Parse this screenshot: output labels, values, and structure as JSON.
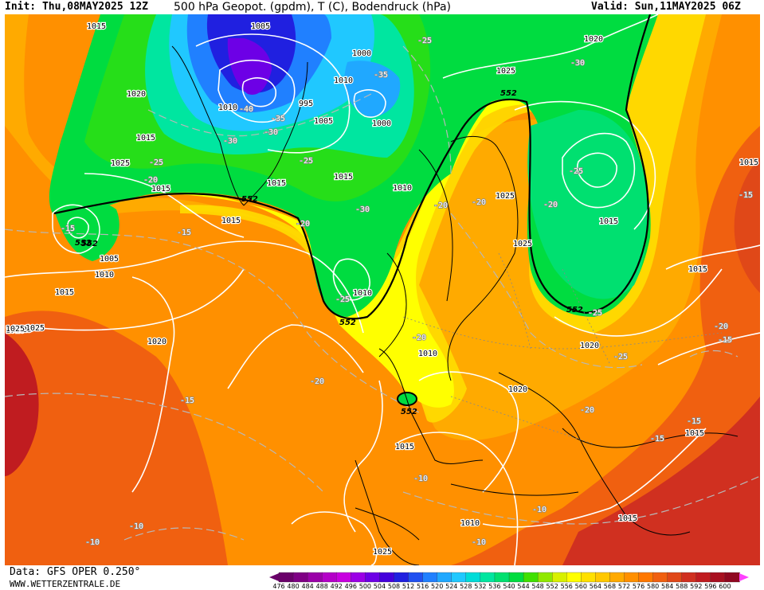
{
  "header": {
    "init": "Init: Thu,08MAY2025 12Z",
    "title": "500 hPa Geopot. (gpdm), T (C), Bodendruck (hPa)",
    "valid": "Valid: Sun,11MAY2025 06Z"
  },
  "footer": {
    "data_source": "Data: GFS OPER 0.250°",
    "site": "WWW.WETTERZENTRALE.DE"
  },
  "legend": {
    "values": [
      "476",
      "480",
      "484",
      "488",
      "492",
      "496",
      "500",
      "504",
      "508",
      "512",
      "516",
      "520",
      "524",
      "528",
      "532",
      "536",
      "540",
      "544",
      "548",
      "552",
      "556",
      "560",
      "564",
      "568",
      "572",
      "576",
      "580",
      "584",
      "588",
      "592",
      "596",
      "600"
    ],
    "colors": [
      "#6a006a",
      "#7f0085",
      "#9a00a8",
      "#b400c8",
      "#c800e0",
      "#9b00e6",
      "#6d00e6",
      "#4400dc",
      "#2020e0",
      "#2050f0",
      "#2080ff",
      "#20a8ff",
      "#20c8ff",
      "#00dcd8",
      "#00e6a0",
      "#00e070",
      "#00dc40",
      "#40e000",
      "#90e800",
      "#d8f000",
      "#ffff00",
      "#ffe000",
      "#ffc800",
      "#ffaa00",
      "#ff9000",
      "#ff7800",
      "#f06010",
      "#e04818",
      "#d03020",
      "#c01c20",
      "#a81020",
      "#900820"
    ]
  },
  "map": {
    "highlighted_contour": "552",
    "pressure_labels": [
      "1015",
      "1005",
      "1000",
      "1010",
      "995",
      "1000",
      "1005",
      "1020",
      "1025",
      "1020",
      "1015",
      "1015",
      "1010",
      "1005",
      "1010",
      "1015",
      "1025",
      "1010",
      "1010",
      "1015",
      "1020",
      "1010",
      "1025",
      "1015",
      "1025",
      "1015",
      "1010",
      "1020",
      "1015",
      "1020",
      "1025",
      "1010",
      "1015",
      "1015",
      "1015",
      "1015",
      "1015",
      "1025",
      "1025",
      "1025",
      "1015"
    ],
    "temp_labels": [
      "-35",
      "-40",
      "-35",
      "-25",
      "-30",
      "-25",
      "-25",
      "-20",
      "-30",
      "-25",
      "-20",
      "-15",
      "-20",
      "-20",
      "-20",
      "-25",
      "-25",
      "-30",
      "-15",
      "-20",
      "-25",
      "-20",
      "-15",
      "-20",
      "-15",
      "-15",
      "-15",
      "-10",
      "-10",
      "-10",
      "-10",
      "-10",
      "-20",
      "-30",
      "-15"
    ],
    "z552_labels": [
      "552",
      "552",
      "552",
      "552",
      "552",
      "552",
      "552"
    ]
  }
}
